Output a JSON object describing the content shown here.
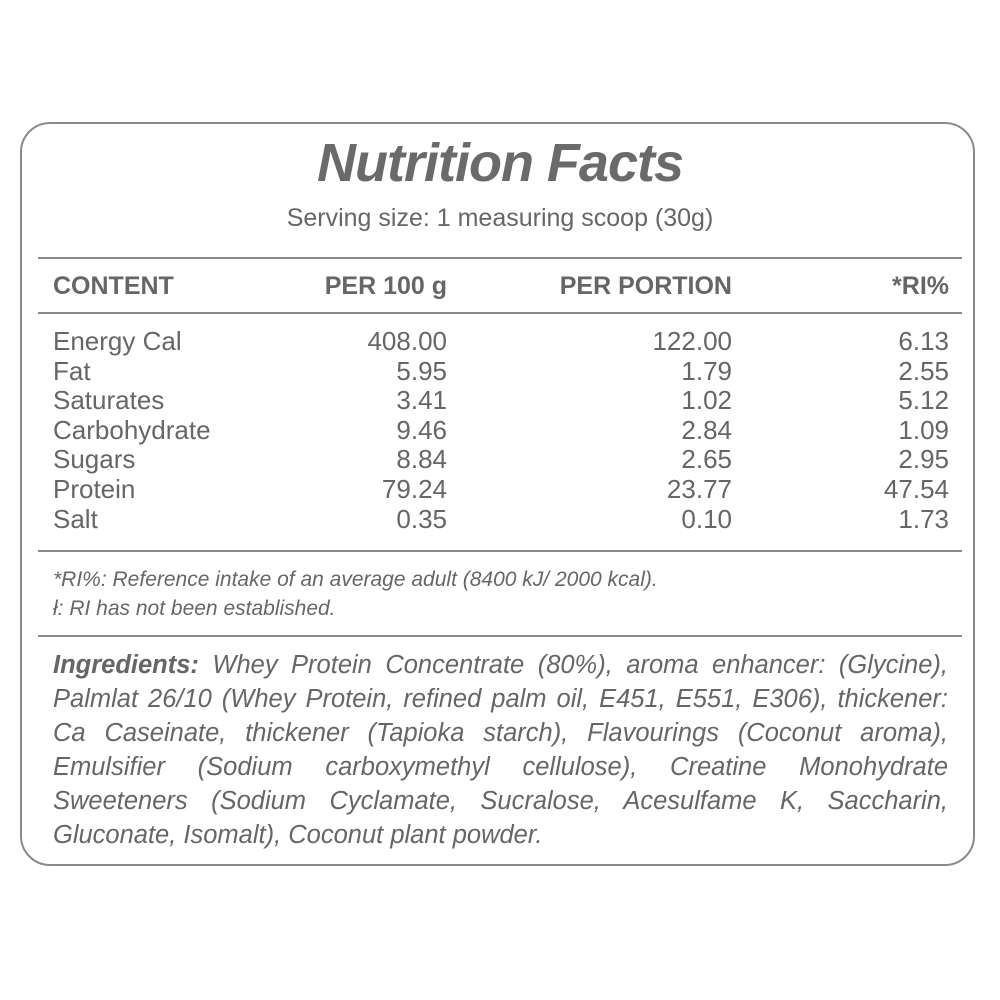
{
  "title": "Nutrition Facts",
  "serving_size": "Serving size: 1 measuring scoop (30g)",
  "table": {
    "headers": [
      "CONTENT",
      "PER 100 g",
      "PER PORTION",
      "*RI%"
    ],
    "rows": [
      [
        "Energy Cal",
        "408.00",
        "122.00",
        "6.13"
      ],
      [
        "Fat",
        "5.95",
        "1.79",
        "2.55"
      ],
      [
        "Saturates",
        "3.41",
        "1.02",
        "5.12"
      ],
      [
        "Carbohydrate",
        "9.46",
        "2.84",
        "1.09"
      ],
      [
        "Sugars",
        "8.84",
        "2.65",
        "2.95"
      ],
      [
        "Protein",
        "79.24",
        "23.77",
        "47.54"
      ],
      [
        "Salt",
        "0.35",
        "0.10",
        "1.73"
      ]
    ]
  },
  "footnotes": [
    "*RI%: Reference intake of an average adult (8400 kJ/ 2000 kcal).",
    "ł: RI has not been established."
  ],
  "ingredients": {
    "label": "Ingredients:",
    "text": " Whey Protein Concentrate (80%), aroma enhancer: (Glycine), Palmlat 26/10 (Whey Protein, refined palm oil, E451, E551, E306), thickener:  Ca Caseinate, thickener (Tapioka starch), Flavourings (Coconut aroma),  Emulsifier (Sodium carboxymethyl cellulose), Creatine Monohydrate Sweeteners (Sodium Cyclamate, Sucralose, Acesulfame K, Saccharin, Gluconate, Isomalt), Coconut plant powder."
  },
  "colors": {
    "text": "#666666",
    "border": "#8a8a8a"
  }
}
